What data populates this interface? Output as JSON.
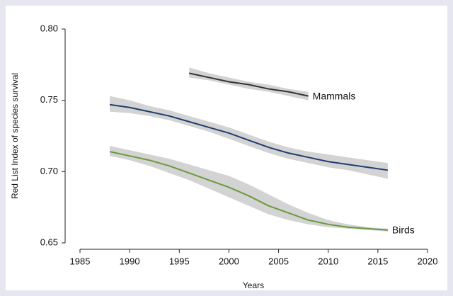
{
  "chart_data": {
    "type": "line",
    "xlabel": "Years",
    "ylabel": "Red List Index of species survival",
    "xlim": [
      1985,
      2020
    ],
    "xticks": [
      1985,
      1990,
      1995,
      2000,
      2005,
      2010,
      2015,
      2020
    ],
    "ylim": [
      0.65,
      0.8
    ],
    "yticks": [
      {
        "value": 0.65,
        "label": "0.65"
      },
      {
        "value": 0.7,
        "label": "0.70"
      },
      {
        "value": 0.75,
        "label": "0.75"
      },
      {
        "value": 0.8,
        "label": "0.80"
      }
    ],
    "band_color": "#d3d3d3",
    "series": [
      {
        "name": "Mammals",
        "color": "#333333",
        "x": [
          1996,
          1998,
          2000,
          2002,
          2004,
          2006,
          2008
        ],
        "values": [
          0.769,
          0.766,
          0.763,
          0.761,
          0.758,
          0.756,
          0.753
        ],
        "lower": [
          0.766,
          0.764,
          0.761,
          0.758,
          0.756,
          0.753,
          0.75
        ],
        "upper": [
          0.773,
          0.769,
          0.766,
          0.763,
          0.761,
          0.758,
          0.756
        ]
      },
      {
        "color": "#1f3d70",
        "x": [
          1988,
          1990,
          1992,
          1994,
          1996,
          1998,
          2000,
          2002,
          2004,
          2006,
          2008,
          2010,
          2012,
          2014,
          2016
        ],
        "values": [
          0.747,
          0.745,
          0.742,
          0.739,
          0.735,
          0.731,
          0.727,
          0.722,
          0.717,
          0.713,
          0.71,
          0.707,
          0.705,
          0.703,
          0.701
        ],
        "lower": [
          0.742,
          0.741,
          0.739,
          0.736,
          0.732,
          0.728,
          0.723,
          0.718,
          0.713,
          0.709,
          0.706,
          0.703,
          0.701,
          0.698,
          0.695
        ],
        "upper": [
          0.753,
          0.75,
          0.746,
          0.743,
          0.739,
          0.735,
          0.731,
          0.726,
          0.721,
          0.717,
          0.714,
          0.712,
          0.71,
          0.708,
          0.706
        ]
      },
      {
        "name": "Birds",
        "color": "#6b9a3c",
        "x": [
          1988,
          1990,
          1992,
          1994,
          1996,
          1998,
          2000,
          2002,
          2004,
          2006,
          2008,
          2010,
          2012,
          2014,
          2016
        ],
        "values": [
          0.714,
          0.711,
          0.708,
          0.704,
          0.699,
          0.694,
          0.689,
          0.683,
          0.676,
          0.671,
          0.666,
          0.663,
          0.661,
          0.66,
          0.659
        ],
        "lower": [
          0.711,
          0.708,
          0.704,
          0.699,
          0.694,
          0.688,
          0.682,
          0.676,
          0.67,
          0.666,
          0.663,
          0.661,
          0.66,
          0.659,
          0.658
        ],
        "upper": [
          0.718,
          0.715,
          0.712,
          0.709,
          0.705,
          0.701,
          0.697,
          0.691,
          0.684,
          0.677,
          0.671,
          0.666,
          0.663,
          0.661,
          0.66
        ]
      }
    ]
  }
}
